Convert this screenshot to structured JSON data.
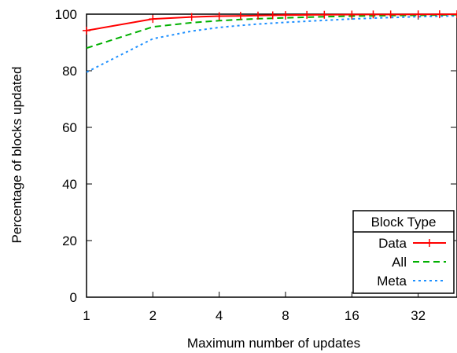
{
  "chart_data": {
    "type": "line",
    "title": "",
    "xlabel": "Maximum number of updates",
    "ylabel": "Percentage of blocks updated",
    "x_scale": "log2",
    "xlim": [
      1,
      48
    ],
    "ylim": [
      0,
      100
    ],
    "x_ticks": [
      1,
      2,
      4,
      8,
      16,
      32
    ],
    "x_tick_labels": [
      "1",
      "2",
      "4",
      "8",
      "16",
      "32"
    ],
    "y_ticks": [
      0,
      20,
      40,
      60,
      80,
      100
    ],
    "y_tick_labels": [
      "0",
      "20",
      "40",
      "60",
      "80",
      "100"
    ],
    "grid": false,
    "legend": {
      "title": "Block Type",
      "position": "bottom-right"
    },
    "series": [
      {
        "name": "Data",
        "color": "#ff0000",
        "dash": "solid",
        "marker": "plus",
        "x": [
          1,
          2,
          3,
          4,
          5,
          6,
          7,
          8,
          10,
          12,
          16,
          20,
          24,
          32,
          40,
          48
        ],
        "values": [
          94.2,
          98.3,
          99.0,
          99.3,
          99.4,
          99.5,
          99.6,
          99.7,
          99.75,
          99.8,
          99.85,
          99.88,
          99.9,
          99.93,
          99.95,
          99.97
        ]
      },
      {
        "name": "All",
        "color": "#00b000",
        "dash": "dashed",
        "marker": "none",
        "x": [
          1,
          2,
          3,
          4,
          5,
          6,
          8,
          12,
          16,
          24,
          32,
          48
        ],
        "values": [
          88.0,
          95.5,
          97.0,
          97.7,
          98.1,
          98.4,
          98.7,
          99.1,
          99.3,
          99.5,
          99.6,
          99.8
        ]
      },
      {
        "name": "Meta",
        "color": "#1e90ff",
        "dash": "dotted",
        "marker": "none",
        "x": [
          1,
          2,
          3,
          4,
          5,
          6,
          8,
          12,
          16,
          24,
          32,
          48
        ],
        "values": [
          79.5,
          91.3,
          94.0,
          95.3,
          96.0,
          96.5,
          97.1,
          97.8,
          98.3,
          98.8,
          99.1,
          99.4
        ]
      }
    ]
  }
}
